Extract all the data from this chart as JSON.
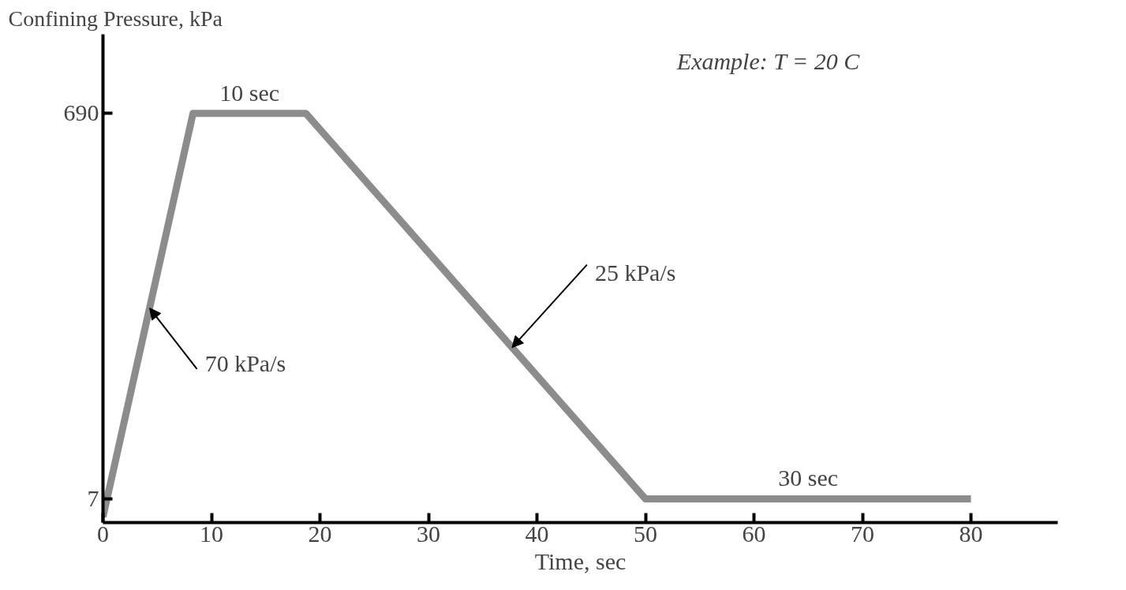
{
  "chart_data": {
    "type": "line",
    "ylabel": "Confining Pressure, kPa",
    "xlabel": "Time, sec",
    "x": [
      0,
      8.3,
      18.7,
      50,
      80
    ],
    "series": [
      {
        "color": "#8c8c8c",
        "values": [
          -25,
          690,
          690,
          7,
          7
        ]
      }
    ],
    "xlim": [
      0,
      88
    ],
    "ylim": [
      -35,
      830
    ],
    "xticks": [
      0,
      10,
      20,
      30,
      40,
      50,
      60,
      70,
      80
    ],
    "yticks": [
      7,
      690
    ],
    "grid": false,
    "marker": "none",
    "line_style": "solid",
    "annotations": [
      {
        "text": "10 sec",
        "x": 13.5,
        "y": 690
      },
      {
        "text": "25 kPa/s",
        "x": 37.7,
        "y": 275
      },
      {
        "text": "70 kPa/s",
        "x": 4.3,
        "y": 345
      },
      {
        "text": "30 sec",
        "x": 65,
        "y": 7
      },
      "Example:  T = 20 C"
    ]
  }
}
